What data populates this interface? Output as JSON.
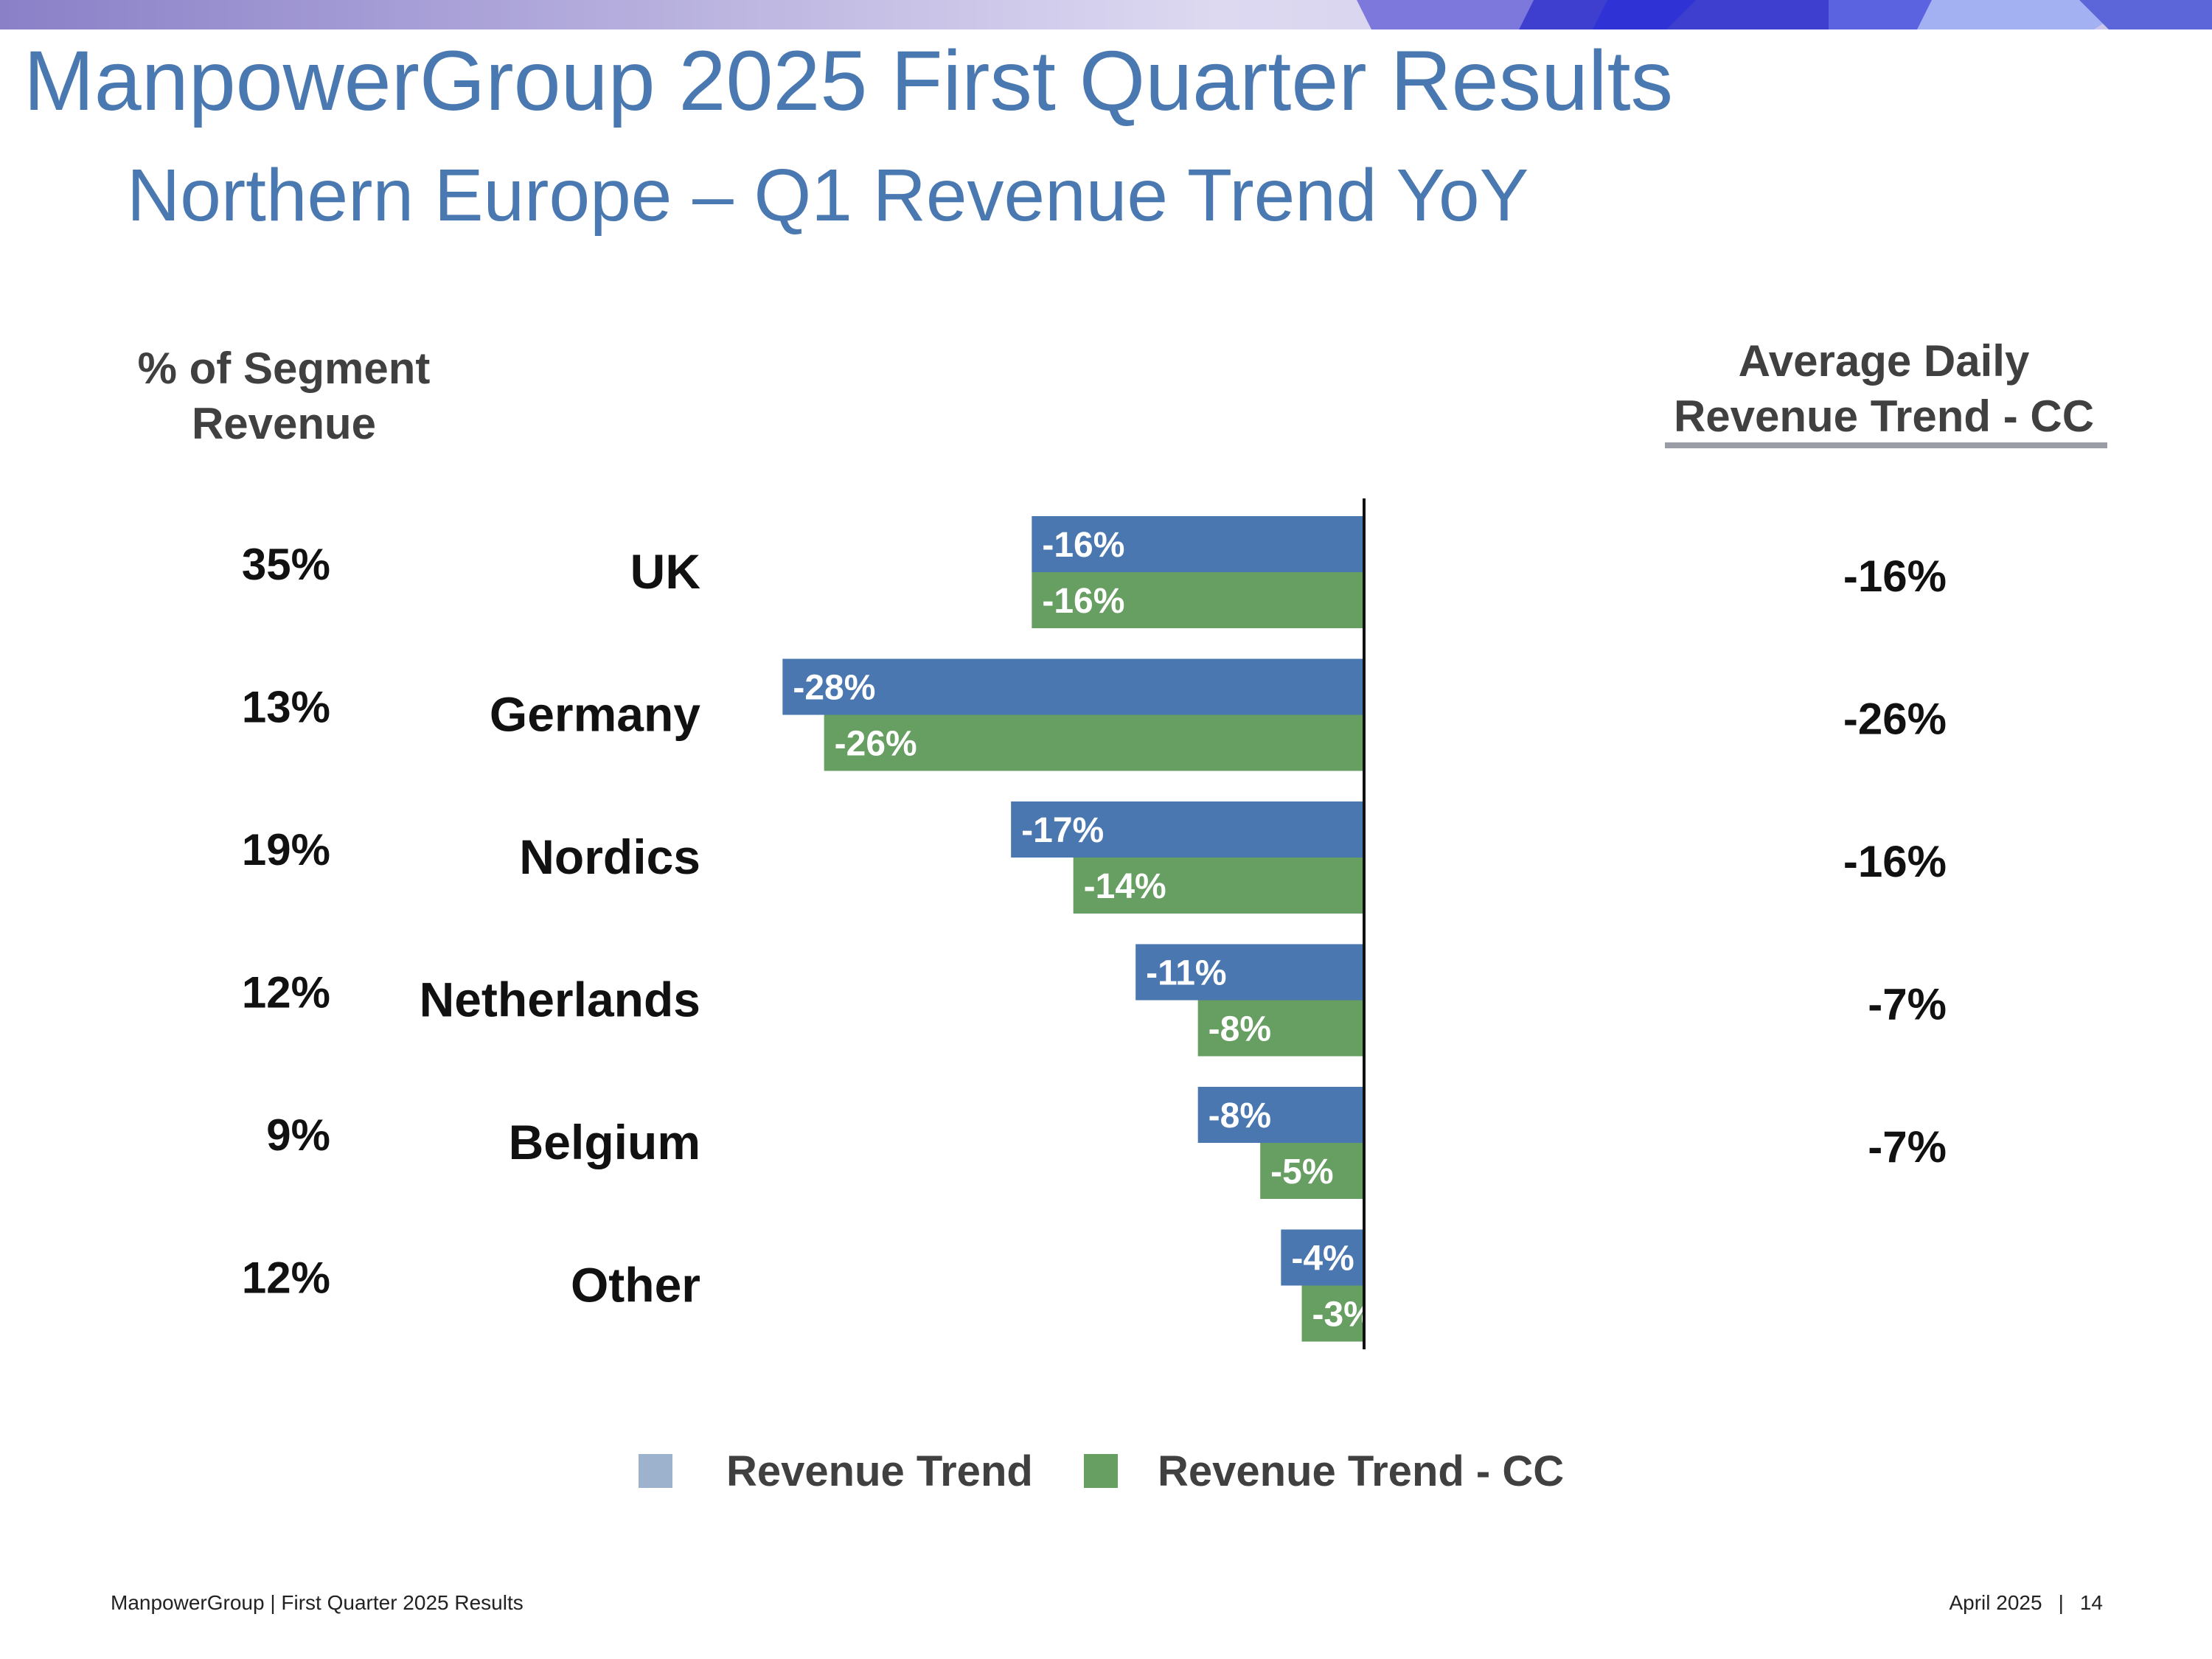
{
  "header": {
    "title": "ManpowerGroup 2025 First Quarter Results",
    "subtitle": "Northern Europe – Q1 Revenue Trend YoY"
  },
  "columns": {
    "left_header": [
      "% of Segment",
      "Revenue"
    ],
    "right_header": [
      "Average Daily",
      "Revenue Trend - CC"
    ]
  },
  "colors": {
    "revenue_trend": "#4a77b0",
    "revenue_trend_cc": "#679e62",
    "legend_revenue_trend": "#9db2cc",
    "brand_text": "#4a78b0"
  },
  "chart_data": {
    "type": "bar",
    "orientation": "horizontal",
    "title": "Northern Europe – Q1 Revenue Trend YoY",
    "categories": [
      "UK",
      "Germany",
      "Nordics",
      "Netherlands",
      "Belgium",
      "Other"
    ],
    "segment_share": [
      "35%",
      "13%",
      "19%",
      "12%",
      "9%",
      "12%"
    ],
    "series": [
      {
        "name": "Revenue Trend",
        "values": [
          -16,
          -28,
          -17,
          -11,
          -8,
          -4
        ],
        "labels": [
          "-16%",
          "-28%",
          "-17%",
          "-11%",
          "-8%",
          "-4%"
        ]
      },
      {
        "name": "Revenue Trend - CC",
        "values": [
          -16,
          -26,
          -14,
          -8,
          -5,
          -3
        ],
        "labels": [
          "-16%",
          "-26%",
          "-14%",
          "-8%",
          "-5%",
          "-3%"
        ]
      }
    ],
    "average_daily_revenue_trend_cc": [
      "-16%",
      "-26%",
      "-16%",
      "-7%",
      "-7%",
      ""
    ],
    "xlim": [
      -30,
      0
    ],
    "legend": [
      "Revenue Trend",
      "Revenue Trend - CC"
    ],
    "legend_position": "bottom",
    "grid": false
  },
  "footer": {
    "left": "ManpowerGroup  |  First Quarter 2025 Results",
    "date": "April 2025",
    "separator": "|",
    "page_number": "14"
  }
}
